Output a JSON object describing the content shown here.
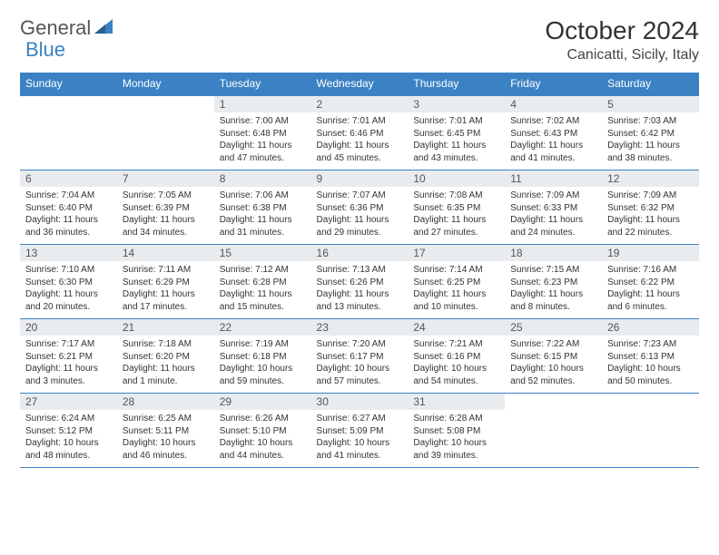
{
  "logo": {
    "text1": "General",
    "text2": "Blue"
  },
  "title": "October 2024",
  "location": "Canicatti, Sicily, Italy",
  "colors": {
    "header_bg": "#3b82c4",
    "header_text": "#ffffff",
    "daynum_bg": "#e9ecef",
    "border": "#3b82c4",
    "logo_gray": "#555555",
    "logo_blue": "#3b82c4"
  },
  "day_headers": [
    "Sunday",
    "Monday",
    "Tuesday",
    "Wednesday",
    "Thursday",
    "Friday",
    "Saturday"
  ],
  "weeks": [
    [
      {
        "blank": true
      },
      {
        "blank": true
      },
      {
        "num": "1",
        "sunrise": "Sunrise: 7:00 AM",
        "sunset": "Sunset: 6:48 PM",
        "daylight": "Daylight: 11 hours and 47 minutes."
      },
      {
        "num": "2",
        "sunrise": "Sunrise: 7:01 AM",
        "sunset": "Sunset: 6:46 PM",
        "daylight": "Daylight: 11 hours and 45 minutes."
      },
      {
        "num": "3",
        "sunrise": "Sunrise: 7:01 AM",
        "sunset": "Sunset: 6:45 PM",
        "daylight": "Daylight: 11 hours and 43 minutes."
      },
      {
        "num": "4",
        "sunrise": "Sunrise: 7:02 AM",
        "sunset": "Sunset: 6:43 PM",
        "daylight": "Daylight: 11 hours and 41 minutes."
      },
      {
        "num": "5",
        "sunrise": "Sunrise: 7:03 AM",
        "sunset": "Sunset: 6:42 PM",
        "daylight": "Daylight: 11 hours and 38 minutes."
      }
    ],
    [
      {
        "num": "6",
        "sunrise": "Sunrise: 7:04 AM",
        "sunset": "Sunset: 6:40 PM",
        "daylight": "Daylight: 11 hours and 36 minutes."
      },
      {
        "num": "7",
        "sunrise": "Sunrise: 7:05 AM",
        "sunset": "Sunset: 6:39 PM",
        "daylight": "Daylight: 11 hours and 34 minutes."
      },
      {
        "num": "8",
        "sunrise": "Sunrise: 7:06 AM",
        "sunset": "Sunset: 6:38 PM",
        "daylight": "Daylight: 11 hours and 31 minutes."
      },
      {
        "num": "9",
        "sunrise": "Sunrise: 7:07 AM",
        "sunset": "Sunset: 6:36 PM",
        "daylight": "Daylight: 11 hours and 29 minutes."
      },
      {
        "num": "10",
        "sunrise": "Sunrise: 7:08 AM",
        "sunset": "Sunset: 6:35 PM",
        "daylight": "Daylight: 11 hours and 27 minutes."
      },
      {
        "num": "11",
        "sunrise": "Sunrise: 7:09 AM",
        "sunset": "Sunset: 6:33 PM",
        "daylight": "Daylight: 11 hours and 24 minutes."
      },
      {
        "num": "12",
        "sunrise": "Sunrise: 7:09 AM",
        "sunset": "Sunset: 6:32 PM",
        "daylight": "Daylight: 11 hours and 22 minutes."
      }
    ],
    [
      {
        "num": "13",
        "sunrise": "Sunrise: 7:10 AM",
        "sunset": "Sunset: 6:30 PM",
        "daylight": "Daylight: 11 hours and 20 minutes."
      },
      {
        "num": "14",
        "sunrise": "Sunrise: 7:11 AM",
        "sunset": "Sunset: 6:29 PM",
        "daylight": "Daylight: 11 hours and 17 minutes."
      },
      {
        "num": "15",
        "sunrise": "Sunrise: 7:12 AM",
        "sunset": "Sunset: 6:28 PM",
        "daylight": "Daylight: 11 hours and 15 minutes."
      },
      {
        "num": "16",
        "sunrise": "Sunrise: 7:13 AM",
        "sunset": "Sunset: 6:26 PM",
        "daylight": "Daylight: 11 hours and 13 minutes."
      },
      {
        "num": "17",
        "sunrise": "Sunrise: 7:14 AM",
        "sunset": "Sunset: 6:25 PM",
        "daylight": "Daylight: 11 hours and 10 minutes."
      },
      {
        "num": "18",
        "sunrise": "Sunrise: 7:15 AM",
        "sunset": "Sunset: 6:23 PM",
        "daylight": "Daylight: 11 hours and 8 minutes."
      },
      {
        "num": "19",
        "sunrise": "Sunrise: 7:16 AM",
        "sunset": "Sunset: 6:22 PM",
        "daylight": "Daylight: 11 hours and 6 minutes."
      }
    ],
    [
      {
        "num": "20",
        "sunrise": "Sunrise: 7:17 AM",
        "sunset": "Sunset: 6:21 PM",
        "daylight": "Daylight: 11 hours and 3 minutes."
      },
      {
        "num": "21",
        "sunrise": "Sunrise: 7:18 AM",
        "sunset": "Sunset: 6:20 PM",
        "daylight": "Daylight: 11 hours and 1 minute."
      },
      {
        "num": "22",
        "sunrise": "Sunrise: 7:19 AM",
        "sunset": "Sunset: 6:18 PM",
        "daylight": "Daylight: 10 hours and 59 minutes."
      },
      {
        "num": "23",
        "sunrise": "Sunrise: 7:20 AM",
        "sunset": "Sunset: 6:17 PM",
        "daylight": "Daylight: 10 hours and 57 minutes."
      },
      {
        "num": "24",
        "sunrise": "Sunrise: 7:21 AM",
        "sunset": "Sunset: 6:16 PM",
        "daylight": "Daylight: 10 hours and 54 minutes."
      },
      {
        "num": "25",
        "sunrise": "Sunrise: 7:22 AM",
        "sunset": "Sunset: 6:15 PM",
        "daylight": "Daylight: 10 hours and 52 minutes."
      },
      {
        "num": "26",
        "sunrise": "Sunrise: 7:23 AM",
        "sunset": "Sunset: 6:13 PM",
        "daylight": "Daylight: 10 hours and 50 minutes."
      }
    ],
    [
      {
        "num": "27",
        "sunrise": "Sunrise: 6:24 AM",
        "sunset": "Sunset: 5:12 PM",
        "daylight": "Daylight: 10 hours and 48 minutes."
      },
      {
        "num": "28",
        "sunrise": "Sunrise: 6:25 AM",
        "sunset": "Sunset: 5:11 PM",
        "daylight": "Daylight: 10 hours and 46 minutes."
      },
      {
        "num": "29",
        "sunrise": "Sunrise: 6:26 AM",
        "sunset": "Sunset: 5:10 PM",
        "daylight": "Daylight: 10 hours and 44 minutes."
      },
      {
        "num": "30",
        "sunrise": "Sunrise: 6:27 AM",
        "sunset": "Sunset: 5:09 PM",
        "daylight": "Daylight: 10 hours and 41 minutes."
      },
      {
        "num": "31",
        "sunrise": "Sunrise: 6:28 AM",
        "sunset": "Sunset: 5:08 PM",
        "daylight": "Daylight: 10 hours and 39 minutes."
      },
      {
        "blank": true
      },
      {
        "blank": true
      }
    ]
  ]
}
